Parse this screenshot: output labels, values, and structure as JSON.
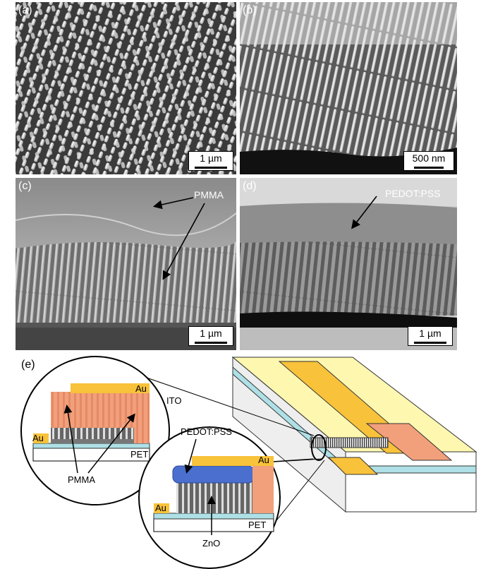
{
  "panels": {
    "a": {
      "label": "(a)",
      "scale": "1 µm"
    },
    "b": {
      "label": "(b)",
      "scale": "500 nm"
    },
    "c": {
      "label": "(c)",
      "scale": "1 µm",
      "annotation": "PMMA"
    },
    "d": {
      "label": "(d)",
      "scale": "1 µm",
      "annotation": "PEDOT:PSS"
    },
    "e": {
      "label": "(e)"
    }
  },
  "schematic": {
    "au": "Au",
    "ito": "ITO",
    "pet": "PET",
    "pmma": "PMMA",
    "pedot": "PEDOT:PSS",
    "zno": "ZnO"
  }
}
